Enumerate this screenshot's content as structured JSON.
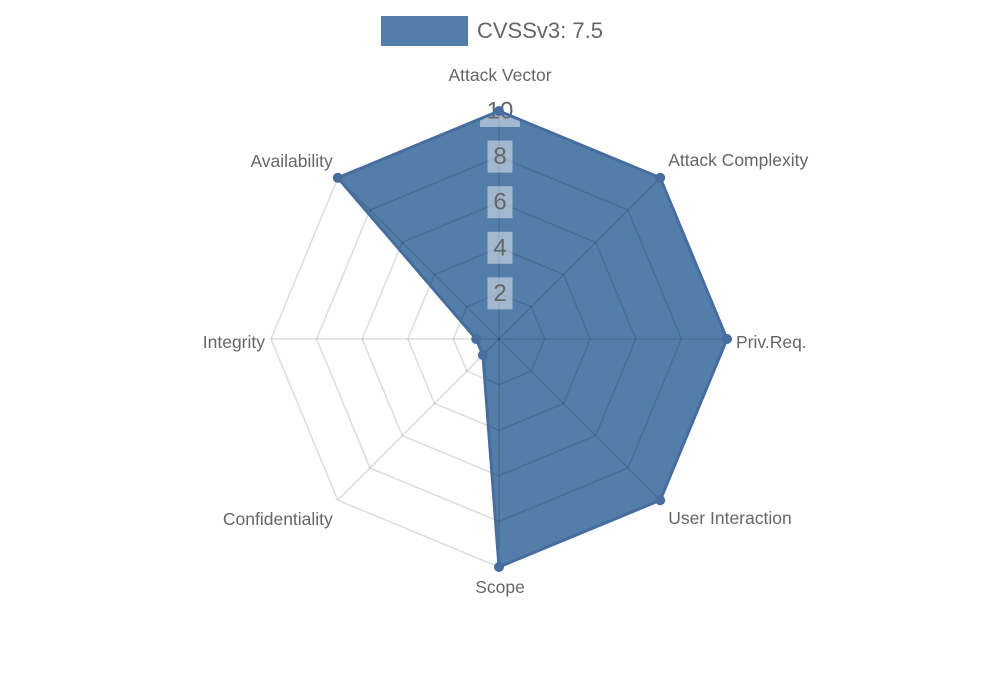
{
  "chart_data": {
    "type": "radar",
    "title": "",
    "legend": {
      "label": "CVSSv3: 7.5",
      "position": "top"
    },
    "categories": [
      "Attack Vector",
      "Attack Complexity",
      "Priv.Req.",
      "User Interaction",
      "Scope",
      "Confidentiality",
      "Integrity",
      "Availability"
    ],
    "series": [
      {
        "name": "CVSSv3: 7.5",
        "values": [
          10,
          10,
          10,
          10,
          10,
          1,
          1,
          10
        ]
      }
    ],
    "scale": {
      "min": 0,
      "max": 10,
      "step": 2,
      "ticks": [
        2,
        4,
        6,
        8,
        10
      ]
    },
    "grid": "on",
    "colors": {
      "series_fill": "#4d79a7",
      "series_fill_opacity": "0.96",
      "series_border": "#466d9e",
      "grid_line": "rgba(0,0,0,0.13)",
      "tick_backdrop": "rgba(255,255,255,0.45)",
      "text": "#666666",
      "background": "#ffffff"
    }
  }
}
